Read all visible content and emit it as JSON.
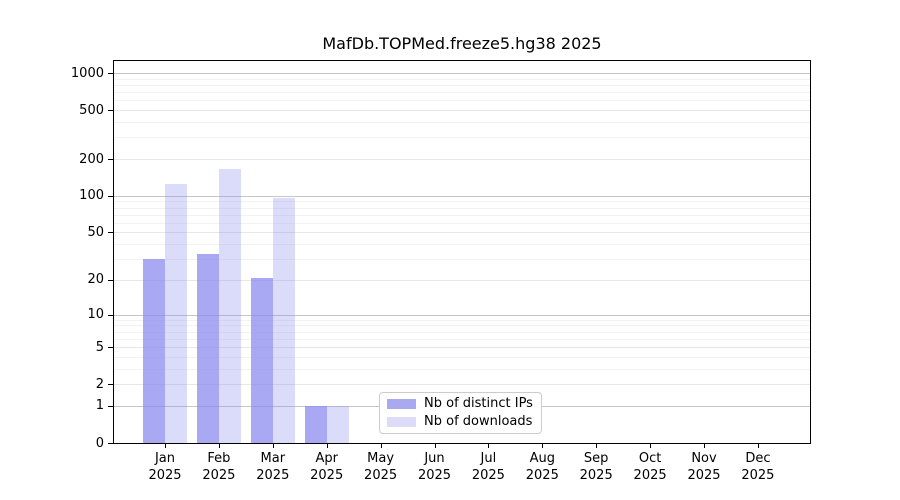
{
  "title": "MafDb.TOPMed.freeze5.hg38 2025",
  "chart_data": {
    "type": "bar",
    "title": "MafDb.TOPMed.freeze5.hg38 2025",
    "categories": [
      "Jan",
      "Feb",
      "Mar",
      "Apr",
      "May",
      "Jun",
      "Jul",
      "Aug",
      "Sep",
      "Oct",
      "Nov",
      "Dec"
    ],
    "year_label": "2025",
    "series": [
      {
        "name": "Nb of distinct IPs",
        "values": [
          30,
          33,
          21,
          1,
          0,
          0,
          0,
          0,
          0,
          0,
          0,
          0
        ],
        "base_color": "#8888ee",
        "alpha": 0.72,
        "swatch_color": "#a9a9f1"
      },
      {
        "name": "Nb of downloads",
        "values": [
          125,
          167,
          97,
          1,
          0,
          0,
          0,
          0,
          0,
          0,
          0,
          0
        ],
        "base_color": "#8888ee",
        "alpha": 0.3,
        "swatch_color": "#dcdcf8"
      }
    ],
    "scale": "log1p",
    "y_ticks": [
      0,
      1,
      2,
      5,
      10,
      20,
      50,
      100,
      200,
      500,
      1000
    ],
    "y_minor_ticks": [
      3,
      4,
      6,
      7,
      8,
      9,
      30,
      40,
      60,
      70,
      80,
      90,
      300,
      400,
      600,
      700,
      800,
      900
    ],
    "ylim": [
      0,
      1300
    ],
    "grid": true,
    "legend_position": "lower center",
    "axis_color": "#000000",
    "grid_decade_color": "#c6c6c6",
    "grid_major_color": "#e7e7e7",
    "grid_minor_color": "#f2f2f2"
  },
  "legend": {
    "items": [
      "Nb of distinct IPs",
      "Nb of downloads"
    ]
  }
}
